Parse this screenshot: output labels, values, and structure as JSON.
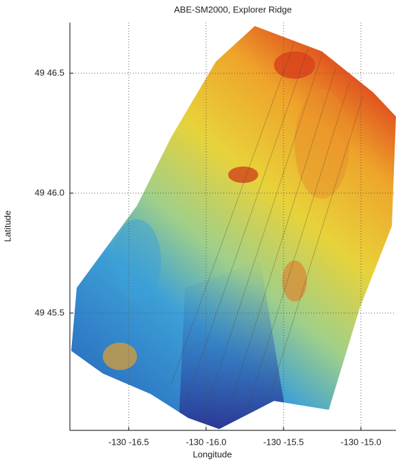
{
  "chart_data": {
    "type": "map",
    "title": "ABE-SM2000, Explorer Ridge",
    "x_label": "Longitude",
    "y_label": "Latitude",
    "xlim": [
      -16.88,
      -14.774
    ],
    "ylim": [
      45.011,
      46.711
    ],
    "xticks": [
      {
        "value": -16.5,
        "label": "-130 -16.5"
      },
      {
        "value": -16.0,
        "label": "-130 -16.0"
      },
      {
        "value": -15.5,
        "label": "-130 -15.5"
      },
      {
        "value": -15.0,
        "label": "-130 -15.0"
      }
    ],
    "yticks": [
      {
        "value": 45.5,
        "label": "49 45.5"
      },
      {
        "value": 46.0,
        "label": "49 46.0"
      },
      {
        "value": 46.5,
        "label": "49 46.5"
      }
    ],
    "grid": true
  }
}
